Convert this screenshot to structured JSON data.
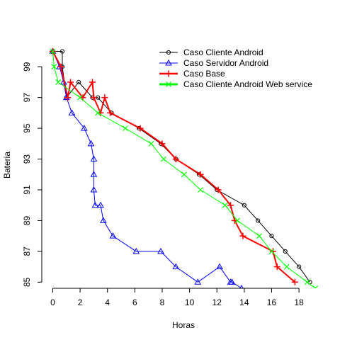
{
  "chart_data": {
    "type": "line",
    "title": "",
    "xlabel": "Horas",
    "ylabel": "Bateria",
    "xlim": [
      -0.8,
      19.6
    ],
    "ylim": [
      84.6,
      100.3
    ],
    "xticks": [
      0,
      2,
      4,
      6,
      8,
      10,
      12,
      14,
      16,
      18
    ],
    "yticks": [
      85,
      87,
      89,
      91,
      93,
      95,
      97,
      99
    ],
    "legend_position": "top-right",
    "series": [
      {
        "name": "Caso Cliente Android",
        "color": "#000000",
        "marker": "circle",
        "line_width": 1,
        "points": [
          [
            0.0,
            100
          ],
          [
            0.7,
            100
          ],
          [
            0.7,
            99
          ],
          [
            1.0,
            97
          ],
          [
            1.9,
            98
          ],
          [
            2.9,
            97
          ],
          [
            3.3,
            97
          ],
          [
            4.3,
            96
          ],
          [
            6.3,
            95
          ],
          [
            7.9,
            94
          ],
          [
            9.0,
            93
          ],
          [
            10.7,
            92
          ],
          [
            12.0,
            91
          ],
          [
            14.0,
            90
          ],
          [
            15.0,
            89
          ],
          [
            16.0,
            88
          ],
          [
            17.0,
            87
          ],
          [
            18.0,
            86
          ],
          [
            18.8,
            85
          ]
        ]
      },
      {
        "name": "Caso Servidor Android",
        "color": "#0000ff",
        "marker": "triangle",
        "line_width": 1,
        "points": [
          [
            0.0,
            100
          ],
          [
            0.5,
            99
          ],
          [
            0.8,
            98
          ],
          [
            1.0,
            97
          ],
          [
            1.4,
            96
          ],
          [
            2.3,
            95
          ],
          [
            2.8,
            94
          ],
          [
            3.0,
            93
          ],
          [
            3.0,
            92
          ],
          [
            3.0,
            91
          ],
          [
            3.1,
            90
          ],
          [
            3.5,
            90
          ],
          [
            3.7,
            89
          ],
          [
            4.4,
            88
          ],
          [
            6.1,
            87
          ],
          [
            7.9,
            87
          ],
          [
            9.0,
            86
          ],
          [
            10.6,
            85
          ],
          [
            12.2,
            86
          ],
          [
            13.0,
            85
          ],
          [
            13.1,
            85
          ],
          [
            13.8,
            84.6
          ]
        ]
      },
      {
        "name": "Caso Base",
        "color": "#ff0000",
        "marker": "plus",
        "line_width": 2,
        "points": [
          [
            0.0,
            100
          ],
          [
            0.6,
            99
          ],
          [
            1.1,
            97
          ],
          [
            1.3,
            98
          ],
          [
            2.2,
            97
          ],
          [
            2.9,
            98
          ],
          [
            3.0,
            97
          ],
          [
            3.5,
            96
          ],
          [
            3.8,
            97
          ],
          [
            4.2,
            96
          ],
          [
            6.4,
            95
          ],
          [
            8.0,
            94
          ],
          [
            9.0,
            93
          ],
          [
            10.8,
            92
          ],
          [
            12.1,
            91
          ],
          [
            13.0,
            90
          ],
          [
            13.3,
            89
          ],
          [
            13.9,
            88
          ],
          [
            16.1,
            87
          ],
          [
            16.4,
            86
          ],
          [
            17.7,
            85
          ]
        ]
      },
      {
        "name": "Caso Cliente Android Web service",
        "color": "#00ff00",
        "marker": "x",
        "line_width": 1,
        "points": [
          [
            0.0,
            100
          ],
          [
            0.1,
            99
          ],
          [
            0.4,
            98
          ],
          [
            2.0,
            97
          ],
          [
            3.3,
            96
          ],
          [
            5.3,
            95
          ],
          [
            7.2,
            94
          ],
          [
            8.1,
            93
          ],
          [
            9.6,
            92
          ],
          [
            10.8,
            91
          ],
          [
            12.6,
            90
          ],
          [
            13.5,
            89
          ],
          [
            15.1,
            88
          ],
          [
            16.0,
            87
          ],
          [
            17.1,
            86
          ],
          [
            18.6,
            85
          ],
          [
            19.2,
            84.6
          ]
        ]
      }
    ]
  }
}
